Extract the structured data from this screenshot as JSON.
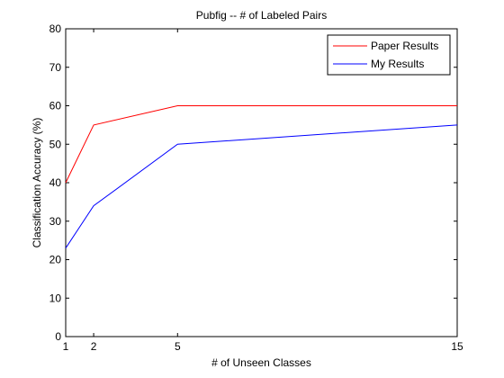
{
  "chart_data": {
    "type": "line",
    "title": "Pubfig -- # of Labeled Pairs",
    "xlabel": "# of Unseen Classes",
    "ylabel": "Classification Accuracy (%)",
    "xlim": [
      1,
      15
    ],
    "ylim": [
      0,
      80
    ],
    "xticks": [
      1,
      2,
      5,
      15
    ],
    "yticks": [
      0,
      10,
      20,
      30,
      40,
      50,
      60,
      70,
      80
    ],
    "x": [
      1,
      2,
      5,
      15
    ],
    "series": [
      {
        "name": "Paper Results",
        "color": "#ff0000",
        "values": [
          40,
          55,
          60,
          60
        ]
      },
      {
        "name": "My Results",
        "color": "#0000ff",
        "values": [
          23,
          34,
          50,
          55
        ]
      }
    ],
    "legend": "top-right",
    "grid": false
  }
}
